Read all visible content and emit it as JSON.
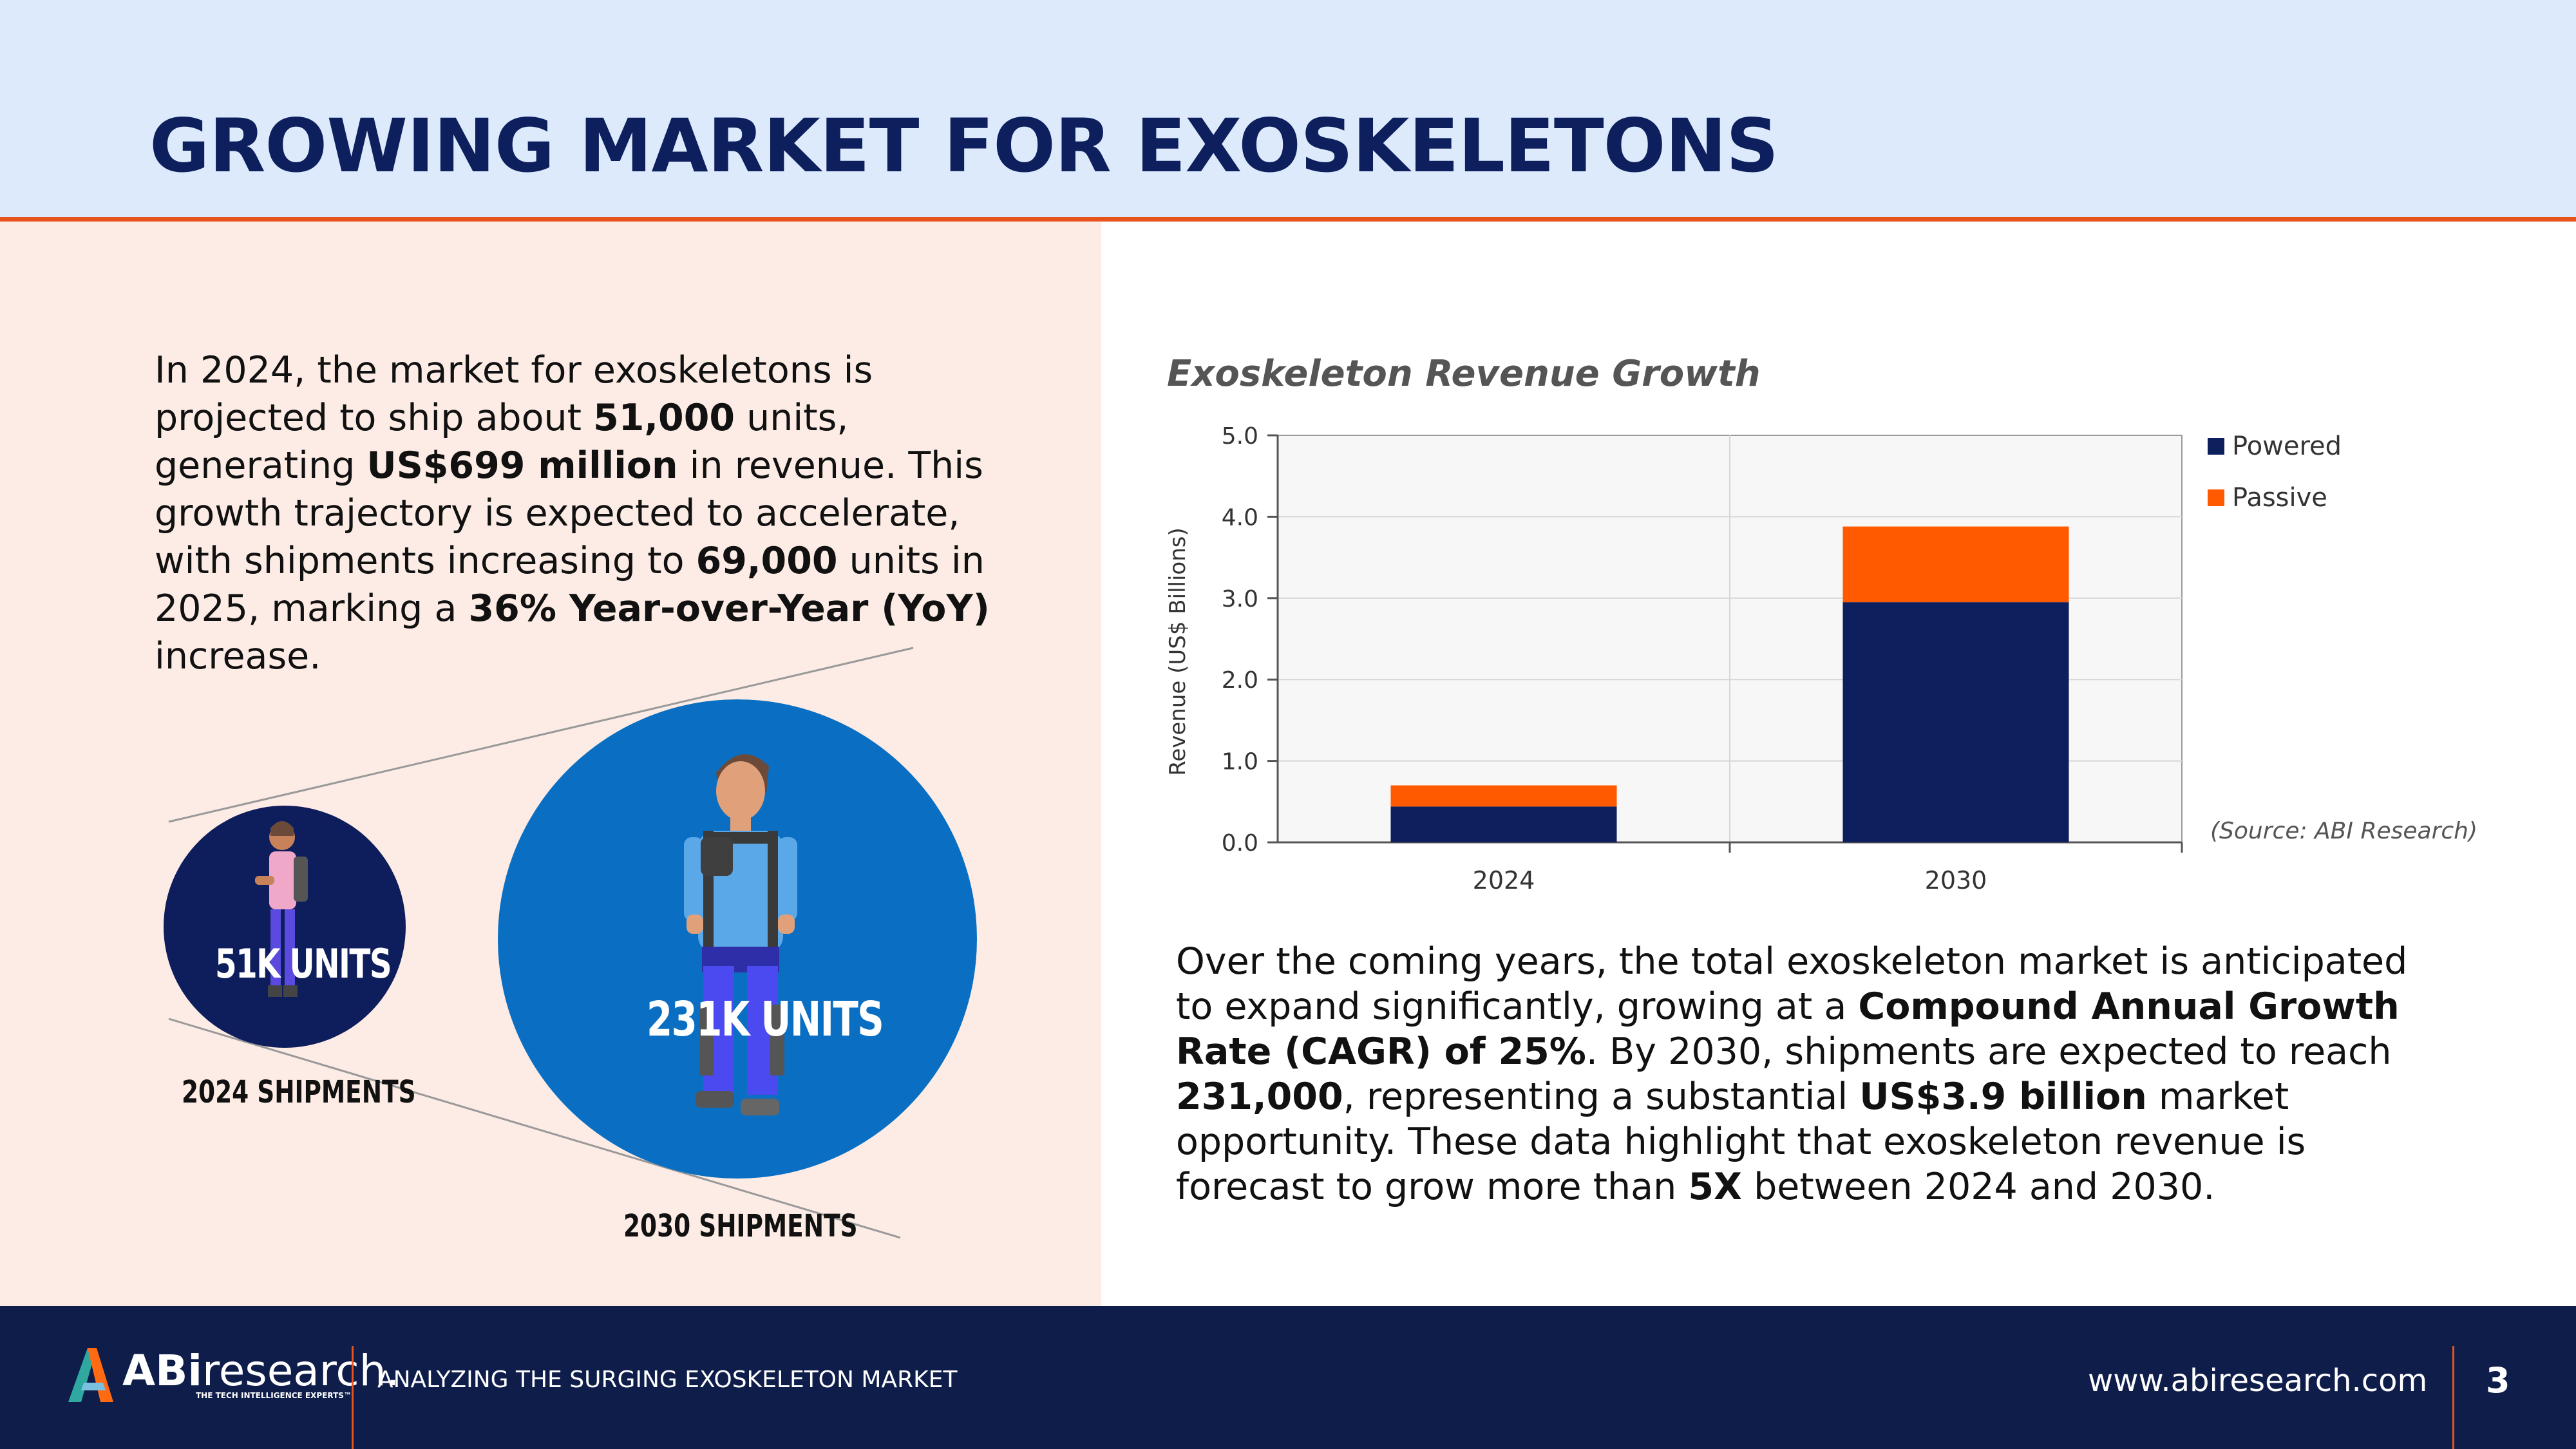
{
  "header": {
    "title": "GROWING MARKET FOR EXOSKELETONS"
  },
  "intro": {
    "t1": "In 2024, the market for exoskeletons is projected to ship about ",
    "b1": "51,000",
    "t2": " units, generating ",
    "b2": "US$699 million",
    "t3": " in revenue. This growth trajectory is expected to accelerate, with shipments increasing to ",
    "b3": "69,000",
    "t4": " units in 2025, marking a ",
    "b4": "36% Year-over-Year (YoY)",
    "t5": " increase."
  },
  "bubbles": {
    "small_label": "51K UNITS",
    "small_caption": "2024 SHIPMENTS",
    "large_label": "231K UNITS",
    "large_caption": "2030 SHIPMENTS",
    "small_color": "#0e1d5c",
    "large_color": "#0a6fc2"
  },
  "chart_data": {
    "type": "bar",
    "stacked": true,
    "title": "Exoskeleton Revenue Growth",
    "xlabel": "",
    "ylabel": "Revenue (US$ Billions)",
    "categories": [
      "2024",
      "2030"
    ],
    "series": [
      {
        "name": "Powered",
        "values": [
          0.44,
          2.95
        ],
        "color": "#0d1f5c"
      },
      {
        "name": "Passive",
        "values": [
          0.26,
          0.93
        ],
        "color": "#ff5a00"
      }
    ],
    "ylim": [
      0,
      5
    ],
    "yticks": [
      "0.0",
      "1.0",
      "2.0",
      "3.0",
      "4.0",
      "5.0"
    ],
    "grid": true,
    "legend": "right",
    "source": "(Source: ABI Research)"
  },
  "outro": {
    "t1": "Over the coming years, the total exoskeleton market is anticipated to expand significantly, growing at a ",
    "b1": "Compound Annual Growth Rate (CAGR) of 25%",
    "t2": ". By 2030, shipments are expected to reach ",
    "b2": "231,000",
    "t3": ", representing a substantial ",
    "b3": "US$3.9 billion",
    "t4": " market opportunity. These data highlight that exoskeleton revenue is forecast to grow more than ",
    "b4": "5X",
    "t5": " between 2024 and 2030."
  },
  "footer": {
    "logo_bold": "ABi",
    "logo_regular": "research.",
    "logo_tagline": "THE TECH INTELLIGENCE EXPERTS™",
    "report_title": "ANALYZING THE SURGING EXOSKELETON MARKET",
    "url": "www.abiresearch.com",
    "page_number": "3"
  },
  "colors": {
    "accent": "#e8541c",
    "navy": "#0e1d4a",
    "header_bg": "#dceafc",
    "panel_bg": "#fdece5"
  }
}
